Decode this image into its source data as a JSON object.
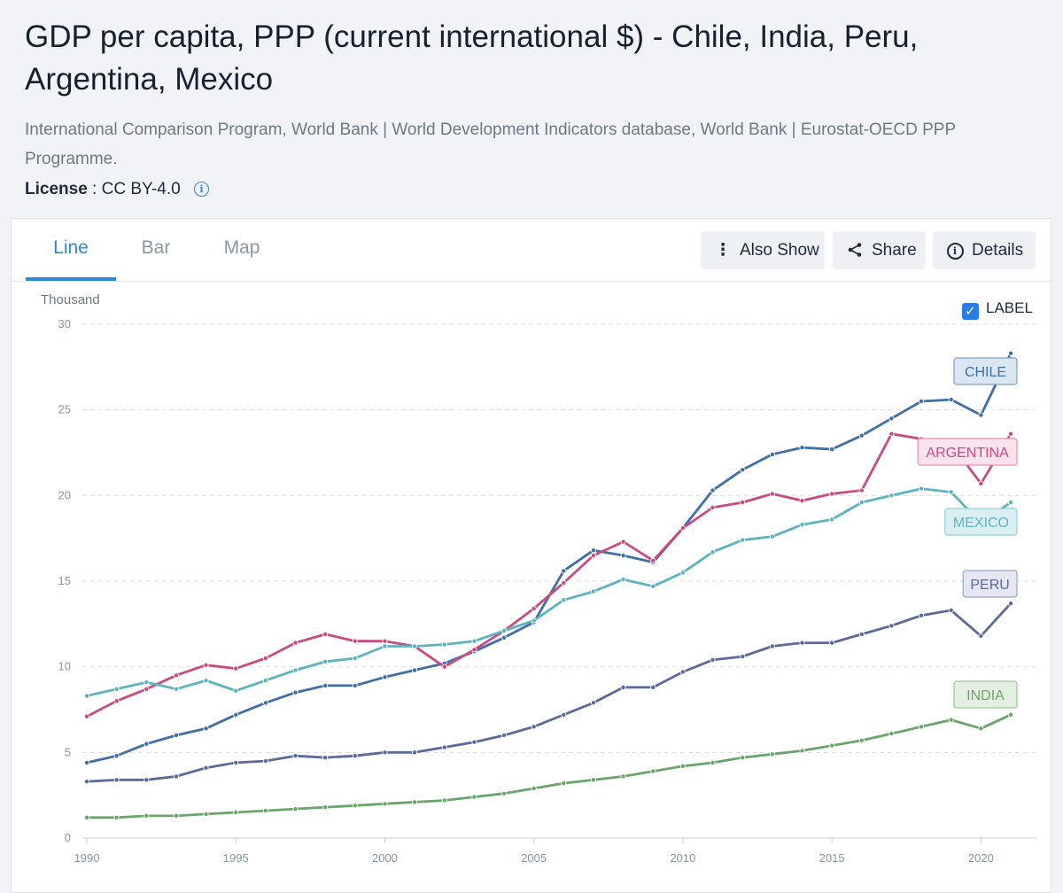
{
  "header": {
    "title": "GDP per capita, PPP (current international $) - Chile, India, Peru, Argentina, Mexico",
    "source": "International Comparison Program, World Bank | World Development Indicators database, World Bank | Eurostat-OECD PPP Programme.",
    "license_label": "License",
    "license_value": ": CC BY-4.0",
    "info_icon": "info-icon"
  },
  "tabs": [
    {
      "label": "Line",
      "active": true
    },
    {
      "label": "Bar",
      "active": false
    },
    {
      "label": "Map",
      "active": false
    }
  ],
  "toolbar": {
    "also_show": "Also Show",
    "share": "Share",
    "details": "Details",
    "icons": [
      "kebab-icon",
      "share-icon",
      "info-icon"
    ]
  },
  "chart_options": {
    "unit_label": "Thousand",
    "label_toggle": "LABEL",
    "label_checked": true
  },
  "chart_data": {
    "type": "line",
    "title": "GDP per capita, PPP (current international $)",
    "ylabel": "Thousand",
    "ylim": [
      0,
      30
    ],
    "yticks": [
      0,
      5,
      10,
      15,
      20,
      25,
      30
    ],
    "xticks": [
      1990,
      1995,
      2000,
      2005,
      2010,
      2015,
      2020
    ],
    "grid": true,
    "x": [
      1990,
      1991,
      1992,
      1993,
      1994,
      1995,
      1996,
      1997,
      1998,
      1999,
      2000,
      2001,
      2002,
      2003,
      2004,
      2005,
      2006,
      2007,
      2008,
      2009,
      2010,
      2011,
      2012,
      2013,
      2014,
      2015,
      2016,
      2017,
      2018,
      2019,
      2020,
      2021
    ],
    "series": [
      {
        "name": "CHILE",
        "color": "#3f6fa6",
        "label_bg": "#dbe6f3",
        "label_border": "#7ea0c8",
        "values": [
          4.4,
          4.8,
          5.5,
          6.0,
          6.4,
          7.2,
          7.9,
          8.5,
          8.9,
          8.9,
          9.4,
          9.8,
          10.2,
          10.9,
          11.7,
          12.6,
          15.6,
          16.8,
          16.5,
          16.1,
          18.1,
          20.3,
          21.5,
          22.4,
          22.8,
          22.7,
          23.5,
          24.5,
          25.5,
          25.6,
          24.7,
          28.3
        ]
      },
      {
        "name": "ARGENTINA",
        "color": "#cc4a82",
        "label_bg": "#fae3ec",
        "label_border": "#e58fb3",
        "values": [
          7.1,
          8.0,
          8.7,
          9.5,
          10.1,
          9.9,
          10.5,
          11.4,
          11.9,
          11.5,
          11.5,
          11.2,
          10.0,
          11.0,
          12.1,
          13.4,
          14.9,
          16.5,
          17.3,
          16.2,
          18.1,
          19.3,
          19.6,
          20.1,
          19.7,
          20.1,
          20.3,
          23.6,
          23.3,
          23.0,
          20.7,
          23.6
        ]
      },
      {
        "name": "MEXICO",
        "color": "#5db4bf",
        "label_bg": "#d9eff1",
        "label_border": "#92d0d8",
        "values": [
          8.3,
          8.7,
          9.1,
          8.7,
          9.2,
          8.6,
          9.2,
          9.8,
          10.3,
          10.5,
          11.2,
          11.2,
          11.3,
          11.5,
          12.1,
          12.7,
          13.9,
          14.4,
          15.1,
          14.7,
          15.5,
          16.7,
          17.4,
          17.6,
          18.3,
          18.6,
          19.6,
          20.0,
          20.4,
          20.2,
          18.4,
          19.6
        ]
      },
      {
        "name": "PERU",
        "color": "#5b6a9b",
        "label_bg": "#e4e7f2",
        "label_border": "#9aa3c6",
        "values": [
          3.3,
          3.4,
          3.4,
          3.6,
          4.1,
          4.4,
          4.5,
          4.8,
          4.7,
          4.8,
          5.0,
          5.0,
          5.3,
          5.6,
          6.0,
          6.5,
          7.2,
          7.9,
          8.8,
          8.8,
          9.7,
          10.4,
          10.6,
          11.2,
          11.4,
          11.4,
          11.9,
          12.4,
          13.0,
          13.3,
          11.8,
          13.7
        ]
      },
      {
        "name": "INDIA",
        "color": "#6aa56a",
        "label_bg": "#e3efe1",
        "label_border": "#9cc79a",
        "values": [
          1.2,
          1.2,
          1.3,
          1.3,
          1.4,
          1.5,
          1.6,
          1.7,
          1.8,
          1.9,
          2.0,
          2.1,
          2.2,
          2.4,
          2.6,
          2.9,
          3.2,
          3.4,
          3.6,
          3.9,
          4.2,
          4.4,
          4.7,
          4.9,
          5.1,
          5.4,
          5.7,
          6.1,
          6.5,
          6.9,
          6.4,
          7.2
        ]
      }
    ]
  }
}
